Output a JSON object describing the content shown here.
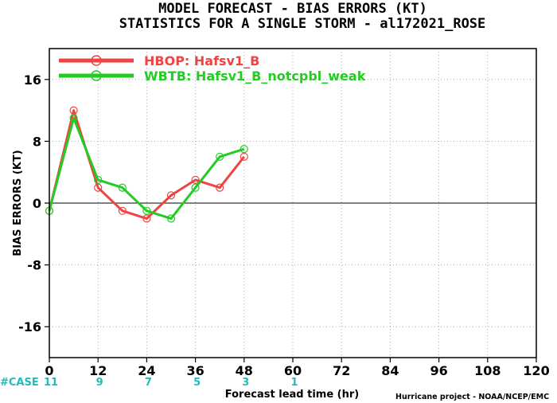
{
  "chart_data": {
    "type": "line",
    "title": "MODEL FORECAST - BIAS ERRORS (KT)",
    "subtitle": "STATISTICS FOR A SINGLE STORM - al172021_ROSE",
    "xlabel": "Forecast lead time (hr)",
    "ylabel": "BIAS ERRORS (KT)",
    "xlim": [
      0,
      120
    ],
    "ylim": [
      -20,
      20
    ],
    "xticks": [
      0,
      12,
      24,
      36,
      48,
      60,
      72,
      84,
      96,
      108,
      120
    ],
    "yticks": [
      -16,
      -8,
      0,
      8,
      16
    ],
    "grid": true,
    "legend_position": "top-left",
    "series": [
      {
        "name": "HBOP: Hafsv1_B",
        "color": "#ee4444",
        "x": [
          0,
          6,
          12,
          18,
          24,
          30,
          36,
          42,
          48
        ],
        "y": [
          -1,
          12,
          2,
          -1,
          -2,
          1,
          3,
          2,
          6
        ]
      },
      {
        "name": "WBTB: Hafsv1_B_notcpbl_weak",
        "color": "#22cc22",
        "x": [
          0,
          6,
          12,
          18,
          24,
          30,
          36,
          42,
          48
        ],
        "y": [
          -1,
          11,
          3,
          2,
          -1,
          -2,
          2,
          6,
          7
        ]
      }
    ],
    "cases": {
      "label": "#CASE",
      "hours": [
        0,
        12,
        24,
        36,
        48,
        60
      ],
      "counts": [
        "11",
        "9",
        "7",
        "5",
        "3",
        "1"
      ]
    }
  },
  "credit": "Hurricane project - NOAA/NCEP/EMC",
  "colors": {
    "case": "#22bbbb",
    "zero_line": "#000000",
    "grid": "#aaaaaa"
  }
}
